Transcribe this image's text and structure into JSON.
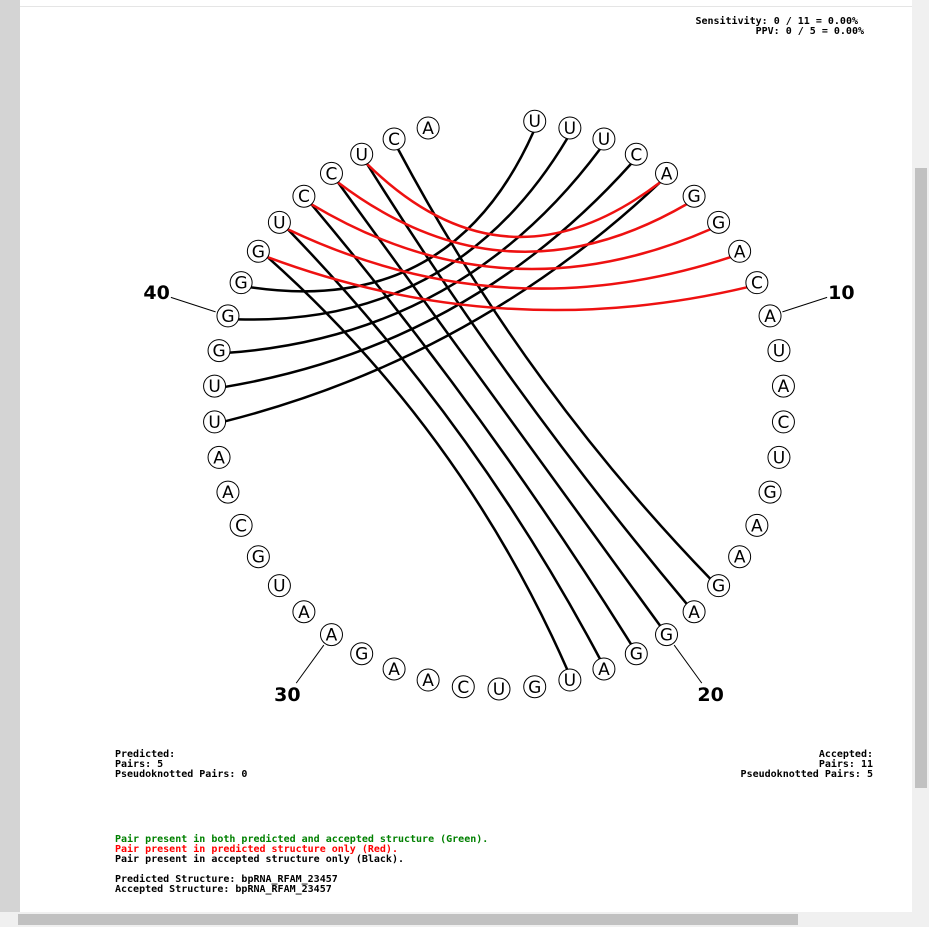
{
  "status": {
    "sensitivity": "Sensitivity: 0 / 11 = 0.00%",
    "ppv": "PPV: 0 / 5 = 0.00%"
  },
  "sequence": [
    "U",
    "U",
    "U",
    "C",
    "A",
    "G",
    "G",
    "A",
    "C",
    "A",
    "U",
    "A",
    "C",
    "U",
    "G",
    "A",
    "A",
    "G",
    "A",
    "G",
    "G",
    "A",
    "U",
    "G",
    "U",
    "C",
    "A",
    "A",
    "G",
    "A",
    "A",
    "U",
    "G",
    "C",
    "A",
    "A",
    "U",
    "U",
    "G",
    "G",
    "G",
    "G",
    "U",
    "C",
    "C",
    "U",
    "C",
    "A"
  ],
  "position_labels": [
    10,
    20,
    30,
    40
  ],
  "accepted_pairs": [
    [
      47,
      18
    ],
    [
      46,
      19
    ],
    [
      45,
      20
    ],
    [
      44,
      21
    ],
    [
      43,
      22
    ],
    [
      42,
      23
    ],
    [
      1,
      41
    ],
    [
      2,
      40
    ],
    [
      3,
      39
    ],
    [
      4,
      38
    ],
    [
      5,
      37
    ]
  ],
  "predicted_pairs": [
    [
      46,
      5
    ],
    [
      45,
      6
    ],
    [
      44,
      7
    ],
    [
      43,
      8
    ],
    [
      42,
      9
    ]
  ],
  "predicted_summary": {
    "heading": "Predicted:",
    "pairs": "Pairs: 5",
    "pseudoknotted": "Pseudoknotted Pairs: 0"
  },
  "accepted_summary": {
    "heading": "Accepted:",
    "pairs": "Pairs: 11",
    "pseudoknotted": "Pseudoknotted Pairs: 5"
  },
  "legend": {
    "both": "Pair present in both predicted and accepted structure (Green).",
    "predicted": "Pair present in predicted structure only (Red).",
    "accepted": "Pair present in accepted structure only (Black)."
  },
  "structures": {
    "predicted": "Predicted Structure: bpRNA_RFAM_23457",
    "accepted": "Accepted Structure: bpRNA_RFAM_23457"
  }
}
